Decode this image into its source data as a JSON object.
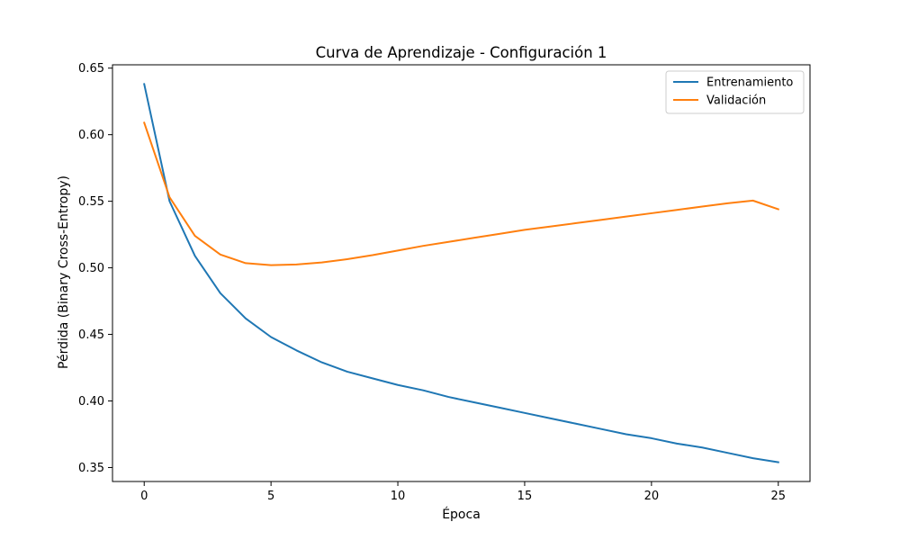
{
  "chart_data": {
    "type": "line",
    "title": "Curva de Aprendizaje - Configuración 1",
    "xlabel": "Época",
    "ylabel": "Pérdida (Binary Cross-Entropy)",
    "xlim": [
      -1.25,
      26.25
    ],
    "ylim": [
      0.3395,
      0.6525
    ],
    "xticks": [
      0,
      5,
      10,
      15,
      20,
      25
    ],
    "yticks": [
      0.35,
      0.4,
      0.45,
      0.5,
      0.55,
      0.6,
      0.65
    ],
    "xtick_labels": [
      "0",
      "5",
      "10",
      "15",
      "20",
      "25"
    ],
    "ytick_labels": [
      "0.35",
      "0.40",
      "0.45",
      "0.50",
      "0.55",
      "0.60",
      "0.65"
    ],
    "grid": false,
    "legend_position": "top-right",
    "x": [
      0,
      1,
      2,
      3,
      4,
      5,
      6,
      7,
      8,
      9,
      10,
      11,
      12,
      13,
      14,
      15,
      16,
      17,
      18,
      19,
      20,
      21,
      22,
      23,
      24,
      25
    ],
    "series": [
      {
        "name": "Entrenamiento",
        "color": "#1f77b4",
        "values": [
          0.638,
          0.55,
          0.509,
          0.481,
          0.462,
          0.448,
          0.438,
          0.429,
          0.422,
          0.417,
          0.412,
          0.408,
          0.403,
          0.399,
          0.395,
          0.391,
          0.387,
          0.383,
          0.379,
          0.375,
          0.372,
          0.368,
          0.365,
          0.361,
          0.357,
          0.354
        ]
      },
      {
        "name": "Validación",
        "color": "#ff7f0e",
        "values": [
          0.609,
          0.553,
          0.524,
          0.51,
          0.5035,
          0.502,
          0.5025,
          0.504,
          0.5065,
          0.5095,
          0.513,
          0.5165,
          0.5195,
          0.5225,
          0.5255,
          0.5285,
          0.531,
          0.5335,
          0.536,
          0.5385,
          0.541,
          0.5435,
          0.546,
          0.5485,
          0.5505,
          0.544
        ]
      }
    ]
  }
}
